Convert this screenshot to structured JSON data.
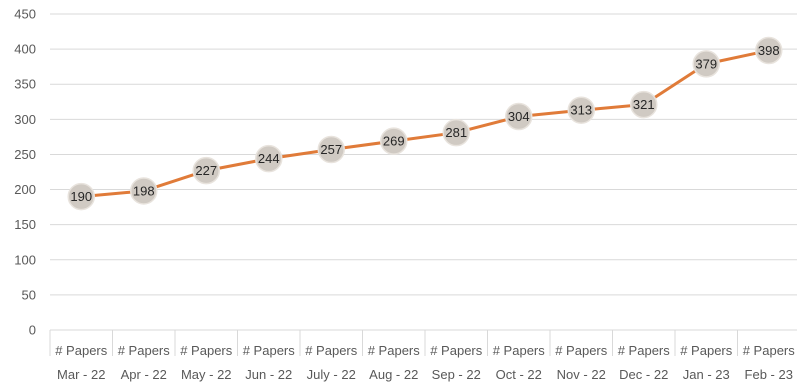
{
  "chart_data": {
    "type": "line",
    "categories": [
      [
        "# Papers",
        "Mar - 22"
      ],
      [
        "# Papers",
        "Apr - 22"
      ],
      [
        "# Papers",
        "May - 22"
      ],
      [
        "# Papers",
        "Jun - 22"
      ],
      [
        "# Papers",
        "July - 22"
      ],
      [
        "# Papers",
        "Aug - 22"
      ],
      [
        "# Papers",
        "Sep - 22"
      ],
      [
        "# Papers",
        "Oct - 22"
      ],
      [
        "# Papers",
        "Nov - 22"
      ],
      [
        "# Papers",
        "Dec - 22"
      ],
      [
        "# Papers",
        "Jan - 23"
      ],
      [
        "# Papers",
        "Feb - 23"
      ]
    ],
    "values": [
      190,
      198,
      227,
      244,
      257,
      269,
      281,
      304,
      313,
      321,
      379,
      398
    ],
    "data_labels": [
      "190",
      "198",
      "227",
      "244",
      "257",
      "269",
      "281",
      "304",
      "313",
      "321",
      "379",
      "398"
    ],
    "yticks": [
      "0",
      "50",
      "100",
      "150",
      "200",
      "250",
      "300",
      "350",
      "400",
      "450"
    ],
    "ylim": [
      0,
      450
    ],
    "grid": true,
    "legend": "none",
    "colors": {
      "line": "#E07B39",
      "marker_fill": "#D0CAC3",
      "marker_stroke": "#E8E3DD",
      "grid": "#D9D9D9",
      "text": "#595959"
    }
  }
}
